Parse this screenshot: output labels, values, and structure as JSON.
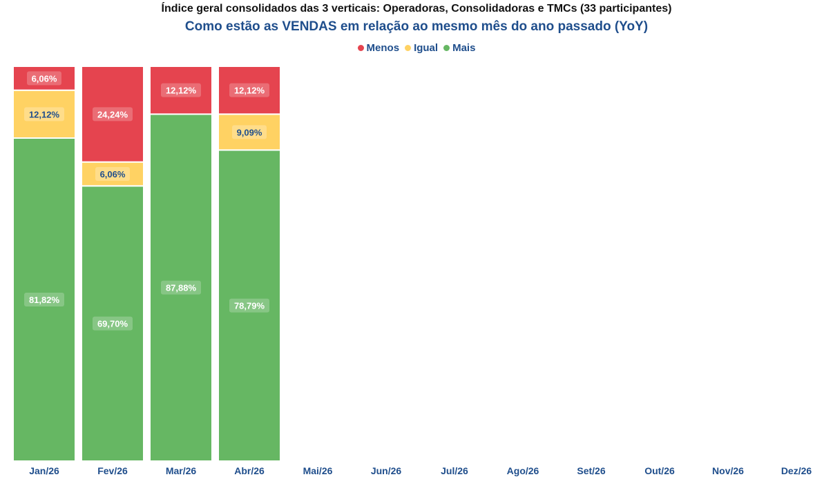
{
  "chart_data": {
    "type": "bar",
    "stacked": true,
    "percent_stacked": true,
    "title": "Índice geral consolidados das 3 verticais: Operadoras, Consolidadoras e TMCs (33 participantes)",
    "subtitle": "Como estão as VENDAS em relação ao mesmo mês do ano passado (YoY)",
    "categories": [
      "Jan/26",
      "Fev/26",
      "Mar/26",
      "Abr/26",
      "Mai/26",
      "Jun/26",
      "Jul/26",
      "Ago/26",
      "Set/26",
      "Out/26",
      "Nov/26",
      "Dez/26"
    ],
    "series": [
      {
        "name": "Menos",
        "color": "#e5444f",
        "values": [
          6.06,
          24.24,
          12.12,
          12.12,
          null,
          null,
          null,
          null,
          null,
          null,
          null,
          null
        ],
        "labels": [
          "6,06%",
          "24,24%",
          "12,12%",
          "12,12%",
          null,
          null,
          null,
          null,
          null,
          null,
          null,
          null
        ]
      },
      {
        "name": "Igual",
        "color": "#ffd263",
        "values": [
          12.12,
          6.06,
          0,
          9.09,
          null,
          null,
          null,
          null,
          null,
          null,
          null,
          null
        ],
        "labels": [
          "12,12%",
          "6,06%",
          null,
          "9,09%",
          null,
          null,
          null,
          null,
          null,
          null,
          null,
          null
        ]
      },
      {
        "name": "Mais",
        "color": "#66b763",
        "values": [
          81.82,
          69.7,
          87.88,
          78.79,
          null,
          null,
          null,
          null,
          null,
          null,
          null,
          null
        ],
        "labels": [
          "81,82%",
          "69,70%",
          "87,88%",
          "78,79%",
          null,
          null,
          null,
          null,
          null,
          null,
          null,
          null
        ]
      }
    ],
    "stack_order_bottom_to_top": [
      "Mais",
      "Igual",
      "Menos"
    ],
    "ylim": [
      0,
      100
    ],
    "grid": false,
    "legend_position": "top-center",
    "axis_label_color": "#1f4e8c"
  }
}
